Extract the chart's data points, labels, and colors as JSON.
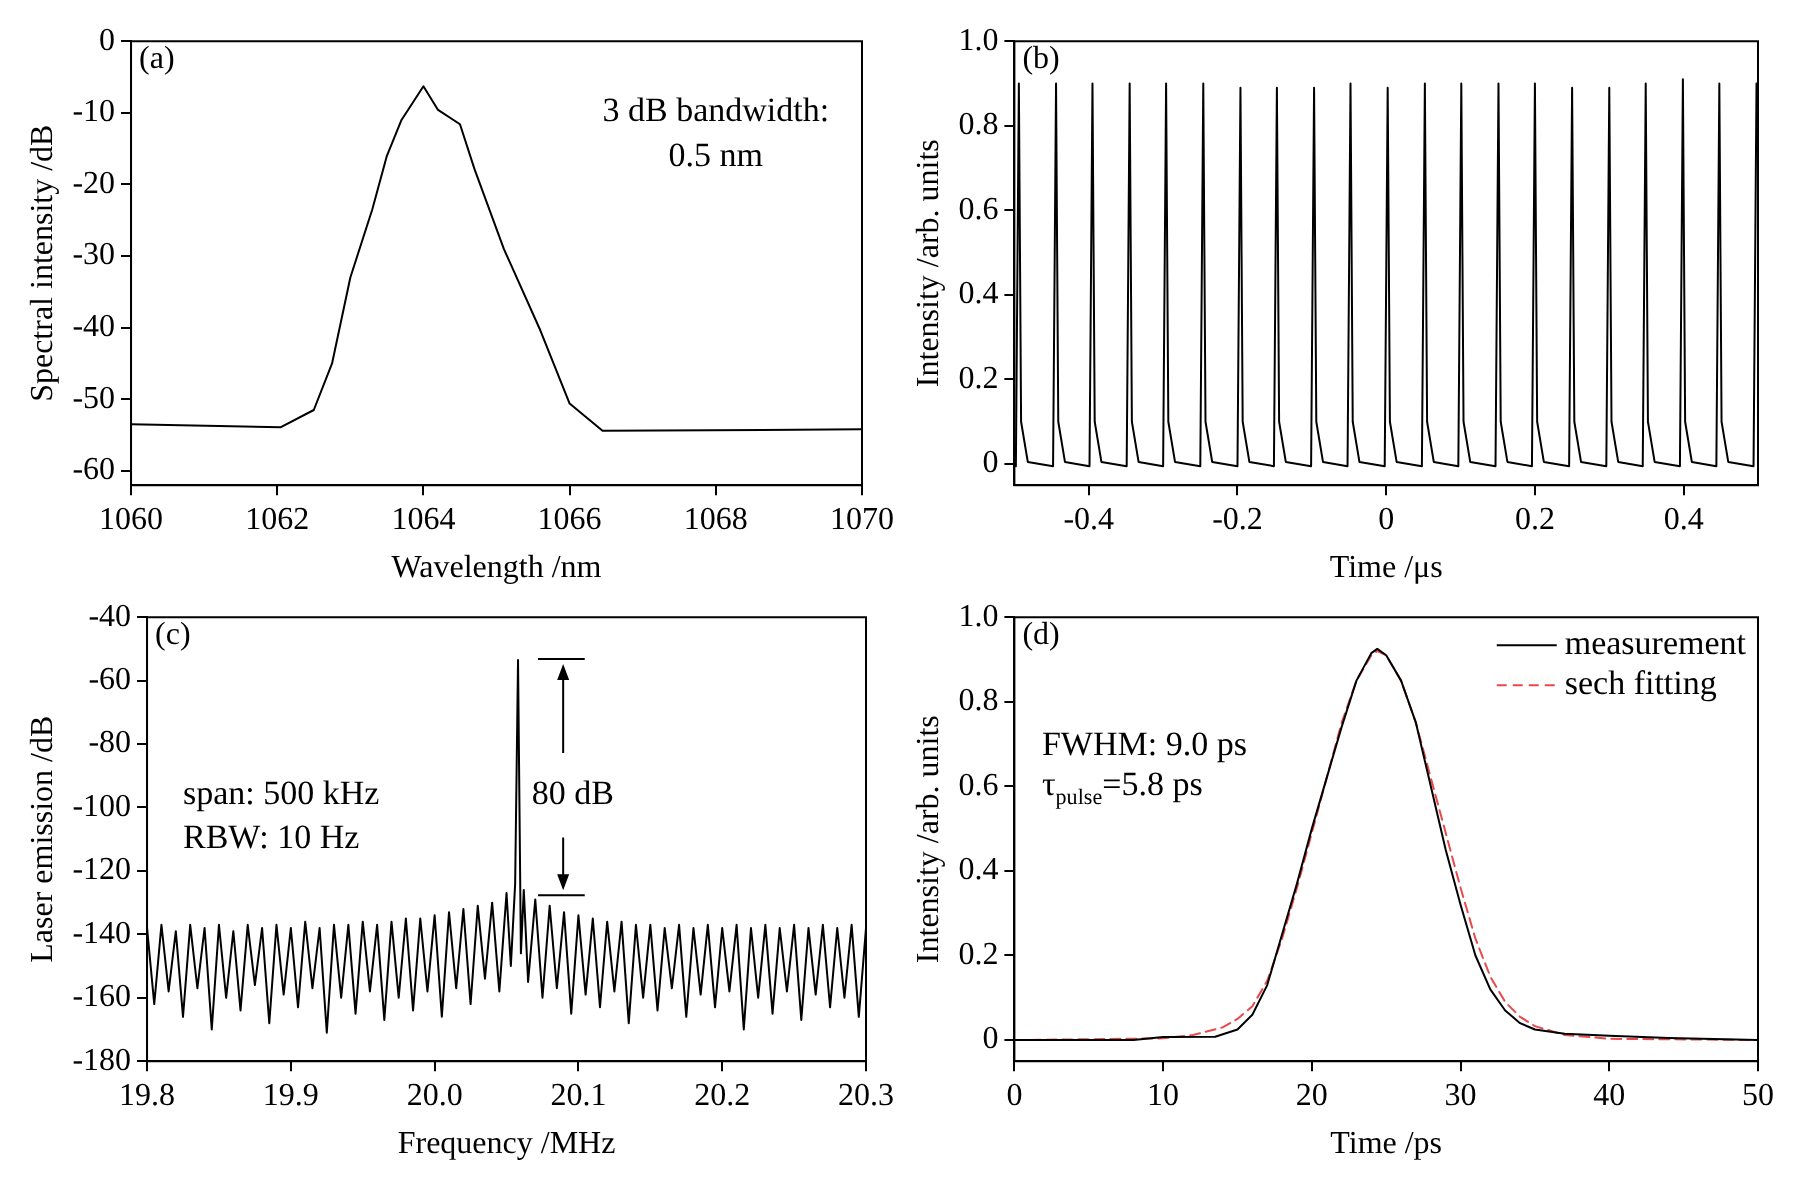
{
  "chart_data": [
    {
      "type": "line",
      "title": "(a)",
      "xlabel": "Wavelength /nm",
      "ylabel": "Spectral intensity /dB",
      "xlim": [
        1060,
        1070
      ],
      "ylim": [
        -62,
        0
      ],
      "xticks": [
        1060,
        1062,
        1064,
        1066,
        1068,
        1070
      ],
      "yticks": [
        -60,
        -50,
        -40,
        -30,
        -20,
        -10,
        0
      ],
      "marker": "none",
      "annotations": [
        "3 dB bandwidth:",
        "0.5 nm"
      ],
      "x": [
        1060,
        1062.05,
        1062.5,
        1062.75,
        1063,
        1063.3,
        1063.5,
        1063.7,
        1064,
        1064.2,
        1064.5,
        1064.7,
        1065.1,
        1065.6,
        1066,
        1066.45,
        1070
      ],
      "series": [
        {
          "color": "#000000",
          "values": [
            -53.5,
            -53.9,
            -51.5,
            -45,
            -33,
            -23.5,
            -16,
            -11,
            -6.3,
            -9.6,
            -11.6,
            -17.9,
            -29,
            -40.4,
            -50.6,
            -54.4,
            -54.2
          ]
        }
      ]
    },
    {
      "type": "line",
      "title": "(b)",
      "xlabel": "Time /μs",
      "ylabel": "Intensity /arb. units",
      "xlim": [
        -0.5,
        0.5
      ],
      "ylim": [
        -0.05,
        1
      ],
      "xticks": [
        -0.4,
        -0.2,
        0,
        0.2,
        0.4
      ],
      "yticks": [
        0,
        0.2,
        0.4,
        0.6,
        0.8,
        {
          "value": 1,
          "label": "1.0"
        }
      ],
      "marker": "none",
      "x": [
        -0.5,
        -0.498,
        -0.494,
        -0.491,
        -0.482,
        -0.448,
        -0.444,
        -0.441,
        -0.432,
        -0.399,
        -0.395,
        -0.392,
        -0.383,
        -0.349,
        -0.345,
        -0.342,
        -0.333,
        -0.3,
        -0.296,
        -0.293,
        -0.284,
        -0.25,
        -0.246,
        -0.243,
        -0.234,
        -0.2,
        -0.196,
        -0.193,
        -0.184,
        -0.151,
        -0.147,
        -0.144,
        -0.135,
        -0.101,
        -0.097,
        -0.094,
        -0.085,
        -0.052,
        -0.048,
        -0.045,
        -0.036,
        -0.002,
        0.002,
        0.005,
        0.014,
        0.048,
        0.052,
        0.055,
        0.064,
        0.097,
        0.101,
        0.104,
        0.113,
        0.147,
        0.151,
        0.154,
        0.163,
        0.196,
        0.2,
        0.203,
        0.212,
        0.246,
        0.25,
        0.253,
        0.262,
        0.296,
        0.3,
        0.303,
        0.312,
        0.345,
        0.349,
        0.352,
        0.361,
        0.395,
        0.399,
        0.402,
        0.411,
        0.444,
        0.448,
        0.451,
        0.46,
        0.494,
        0.498
      ],
      "series": [
        {
          "color": "#000000",
          "values": [
            0.02,
            -0.005,
            0.9,
            0.1,
            0.005,
            -0.005,
            0.9,
            0.1,
            0.005,
            -0.005,
            0.9,
            0.1,
            0.005,
            -0.005,
            0.9,
            0.1,
            0.005,
            -0.005,
            0.9,
            0.1,
            0.005,
            -0.005,
            0.9,
            0.1,
            0.005,
            -0.005,
            0.89,
            0.1,
            0.005,
            -0.005,
            0.89,
            0.1,
            0.005,
            -0.005,
            0.89,
            0.1,
            0.005,
            -0.005,
            0.9,
            0.1,
            0.005,
            -0.005,
            0.89,
            0.1,
            0.005,
            -0.005,
            0.9,
            0.1,
            0.005,
            -0.005,
            0.9,
            0.1,
            0.005,
            -0.005,
            0.9,
            0.1,
            0.005,
            -0.005,
            0.9,
            0.1,
            0.005,
            -0.005,
            0.89,
            0.1,
            0.005,
            -0.005,
            0.89,
            0.1,
            0.005,
            -0.005,
            0.9,
            0.1,
            0.005,
            -0.005,
            0.91,
            0.1,
            0.005,
            -0.005,
            0.9,
            0.1,
            0.005,
            -0.005,
            0.9
          ]
        }
      ]
    },
    {
      "type": "line",
      "title": "(c)",
      "xlabel": "Frequency /MHz",
      "ylabel": "Laser emission /dB",
      "xlim": [
        19.8,
        20.3
      ],
      "ylim": [
        -180,
        -40
      ],
      "xticks": [
        19.8,
        19.9,
        {
          "value": 20,
          "label": "20.0"
        },
        20.1,
        20.2,
        20.3
      ],
      "yticks": [
        -180,
        -160,
        -140,
        -120,
        -100,
        -80,
        -60,
        -40
      ],
      "marker": "none",
      "annotations": [
        "span: 500 kHz",
        "RBW: 10 Hz",
        "80 dB"
      ],
      "x": [
        19.8,
        19.805,
        19.81,
        19.815,
        19.82,
        19.825,
        19.83,
        19.835,
        19.84,
        19.845,
        19.85,
        19.855,
        19.86,
        19.865,
        19.87,
        19.875,
        19.88,
        19.885,
        19.89,
        19.895,
        19.9,
        19.905,
        19.91,
        19.915,
        19.92,
        19.925,
        19.93,
        19.935,
        19.94,
        19.945,
        19.95,
        19.955,
        19.96,
        19.965,
        19.97,
        19.975,
        19.98,
        19.985,
        19.99,
        19.995,
        20,
        20.005,
        20.01,
        20.015,
        20.02,
        20.025,
        20.03,
        20.035,
        20.04,
        20.045,
        20.05,
        20.053,
        20.056,
        20.058,
        20.06,
        20.062,
        20.065,
        20.07,
        20.075,
        20.08,
        20.085,
        20.09,
        20.095,
        20.1,
        20.105,
        20.11,
        20.115,
        20.12,
        20.125,
        20.13,
        20.135,
        20.14,
        20.145,
        20.15,
        20.155,
        20.16,
        20.165,
        20.17,
        20.175,
        20.18,
        20.185,
        20.19,
        20.195,
        20.2,
        20.205,
        20.21,
        20.215,
        20.22,
        20.225,
        20.23,
        20.235,
        20.24,
        20.245,
        20.25,
        20.255,
        20.26,
        20.265,
        20.27,
        20.275,
        20.28,
        20.285,
        20.29,
        20.295,
        20.3
      ],
      "series": [
        {
          "color": "#000000",
          "values": [
            -138,
            -162,
            -137,
            -158,
            -139,
            -166,
            -137,
            -157,
            -138,
            -170,
            -137,
            -160,
            -139,
            -164,
            -137,
            -156,
            -138,
            -168,
            -137,
            -159,
            -138,
            -163,
            -136,
            -157,
            -138,
            -171,
            -137,
            -160,
            -137,
            -165,
            -136,
            -158,
            -137,
            -167,
            -136,
            -160,
            -135,
            -164,
            -135,
            -158,
            -134,
            -166,
            -133,
            -157,
            -132,
            -162,
            -131,
            -154,
            -130,
            -158,
            -127,
            -150,
            -124,
            -53.5,
            -146,
            -126,
            -155,
            -129,
            -160,
            -131,
            -157,
            -133,
            -165,
            -134,
            -159,
            -135,
            -163,
            -136,
            -158,
            -136,
            -168,
            -137,
            -160,
            -137,
            -164,
            -138,
            -157,
            -137,
            -166,
            -138,
            -159,
            -137,
            -163,
            -138,
            -158,
            -137,
            -170,
            -138,
            -160,
            -137,
            -165,
            -138,
            -158,
            -137,
            -167,
            -138,
            -159,
            -137,
            -163,
            -138,
            -160,
            -137,
            -166,
            -138
          ]
        }
      ]
    },
    {
      "type": "line",
      "title": "(d)",
      "xlabel": "Time /ps",
      "ylabel": "Intensity /arb. units",
      "xlim": [
        0,
        50
      ],
      "ylim": [
        -0.05,
        1
      ],
      "xticks": [
        0,
        10,
        20,
        30,
        40,
        50
      ],
      "yticks": [
        0,
        0.2,
        0.4,
        0.6,
        0.8,
        {
          "value": 1,
          "label": "1.0"
        }
      ],
      "marker": "none",
      "legend": "top right",
      "annotations": [
        "FWHM: 9.0 ps",
        "τ$_{pulse}$=5.8 ps"
      ],
      "series": [
        {
          "name": "measurement",
          "color": "#000000",
          "line_style": "solid",
          "x": [
            0,
            8,
            10,
            13.5,
            15,
            16,
            17,
            18,
            19,
            20,
            21,
            22,
            23,
            24,
            24.4,
            25,
            26,
            27,
            28,
            29,
            30,
            31,
            32,
            33,
            34,
            35,
            37,
            40,
            44,
            50
          ],
          "values": [
            0,
            0,
            0.007,
            0.008,
            0.025,
            0.06,
            0.13,
            0.25,
            0.37,
            0.5,
            0.62,
            0.74,
            0.85,
            0.915,
            0.925,
            0.91,
            0.85,
            0.75,
            0.6,
            0.45,
            0.32,
            0.2,
            0.12,
            0.07,
            0.04,
            0.025,
            0.015,
            0.01,
            0.005,
            0
          ]
        },
        {
          "name": "sech fitting",
          "color": "#e8494a",
          "line_style": "dashed",
          "x": [
            0,
            10,
            12,
            14,
            15,
            16,
            17,
            18,
            19,
            20,
            21,
            22,
            23,
            24,
            24.4,
            25,
            26,
            27,
            28,
            29,
            30,
            31,
            32,
            33,
            34,
            35,
            37,
            40,
            50
          ],
          "values": [
            0,
            0.004,
            0.012,
            0.03,
            0.05,
            0.08,
            0.14,
            0.24,
            0.36,
            0.49,
            0.62,
            0.75,
            0.85,
            0.91,
            0.92,
            0.91,
            0.85,
            0.75,
            0.62,
            0.49,
            0.36,
            0.24,
            0.15,
            0.09,
            0.055,
            0.033,
            0.012,
            0.003,
            0
          ]
        }
      ]
    }
  ]
}
